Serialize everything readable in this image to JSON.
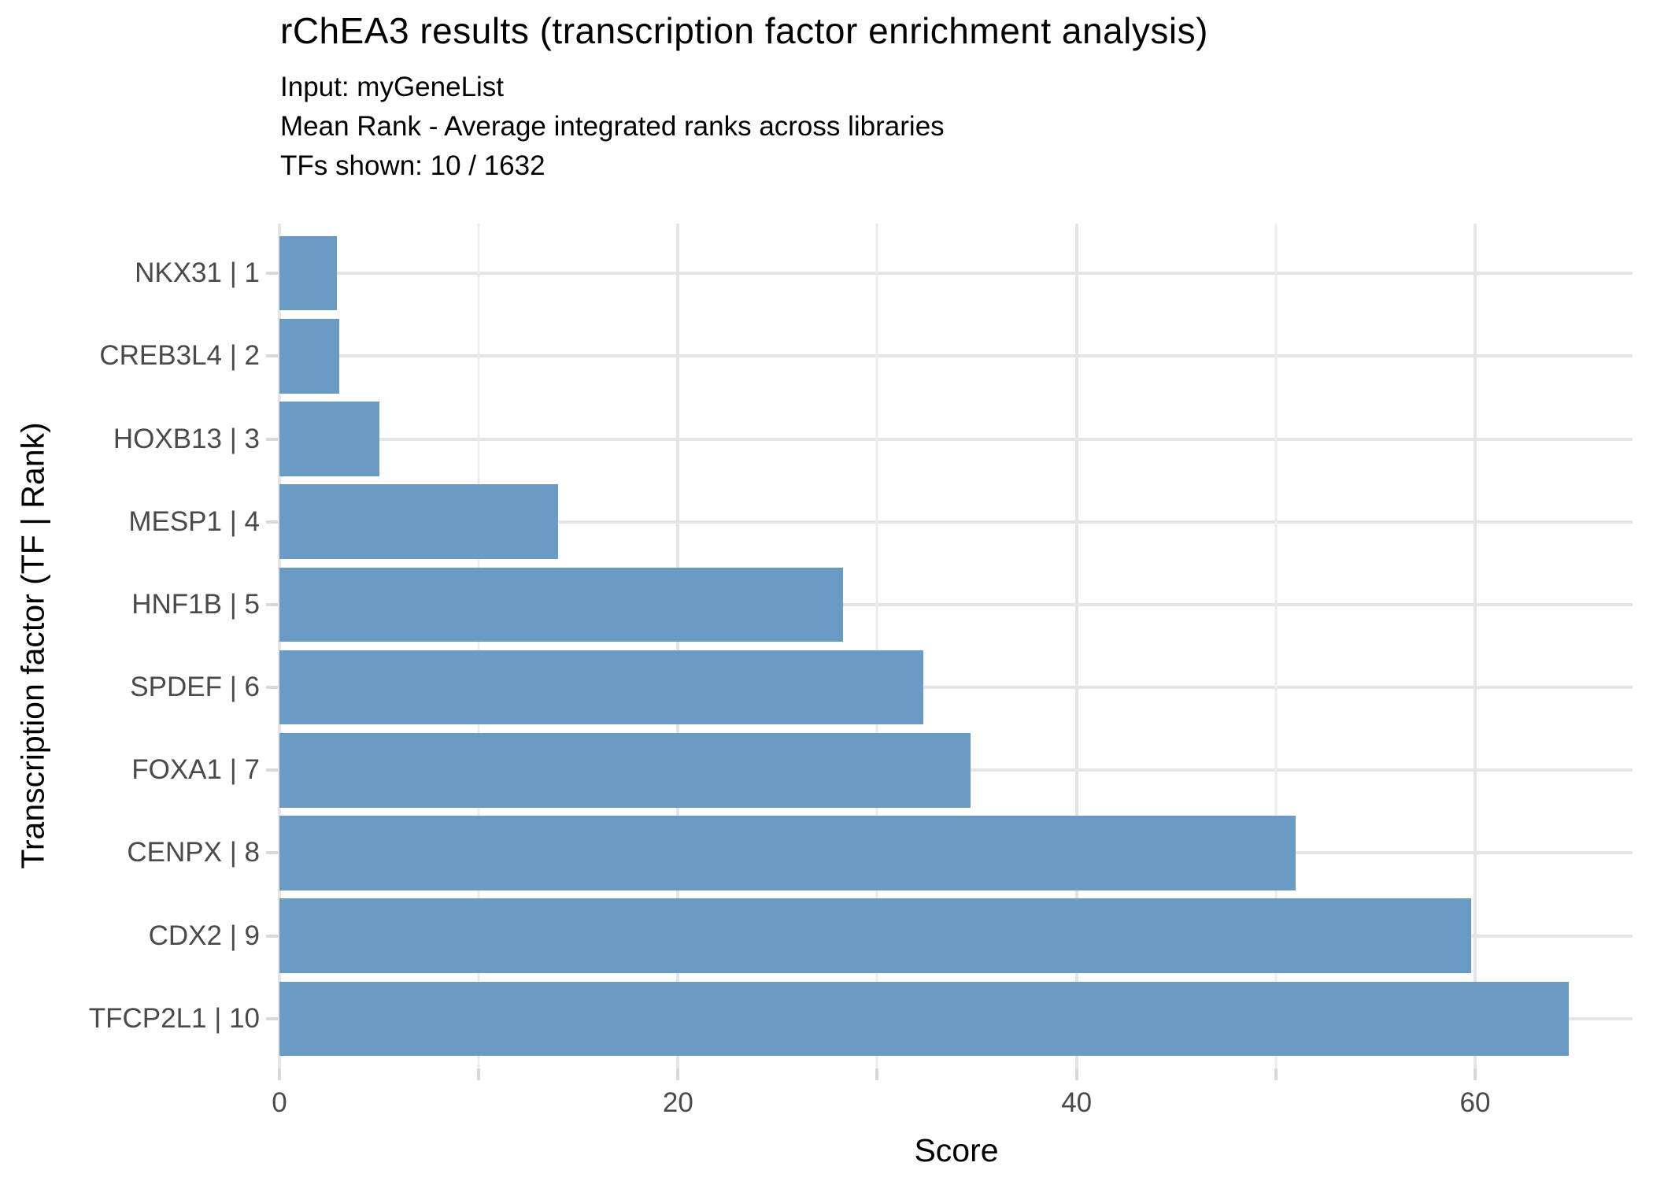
{
  "title": "rChEA3 results (transcription factor enrichment analysis)",
  "subtitle_lines": [
    "Input: myGeneList",
    "Mean Rank - Average integrated ranks across libraries",
    "TFs shown: 10 / 1632"
  ],
  "chart_data": {
    "type": "bar",
    "orientation": "horizontal",
    "title": "rChEA3 results (transcription factor enrichment analysis)",
    "subtitle": "Input: myGeneList | Mean Rank - Average integrated ranks across libraries | TFs shown: 10 / 1632",
    "categories": [
      "NKX31 | 1",
      "CREB3L4 | 2",
      "HOXB13 | 3",
      "MESP1 | 4",
      "HNF1B | 5",
      "SPDEF | 6",
      "FOXA1 | 7",
      "CENPX | 8",
      "CDX2 | 9",
      "TFCP2L1 | 10"
    ],
    "values": [
      2.9,
      3.0,
      5.0,
      14.0,
      28.3,
      32.3,
      34.7,
      51.0,
      59.8,
      64.7
    ],
    "xlabel": "Score",
    "ylabel": "Transcription factor (TF | Rank)",
    "xlim": [
      0,
      67.9
    ],
    "x_major_ticks": [
      0,
      20,
      40,
      60
    ],
    "x_minor_ticks": [
      10,
      30,
      50
    ],
    "grid": "on",
    "legend": "none",
    "colors": {
      "bar_fill": "#6a9bc5",
      "grid_major": "#e5e5e5",
      "grid_minor": "#ececec",
      "tick_mark": "#d9d9d9",
      "tick_text": "#4a4a4a",
      "text": "#000000",
      "background": "#ffffff"
    }
  }
}
